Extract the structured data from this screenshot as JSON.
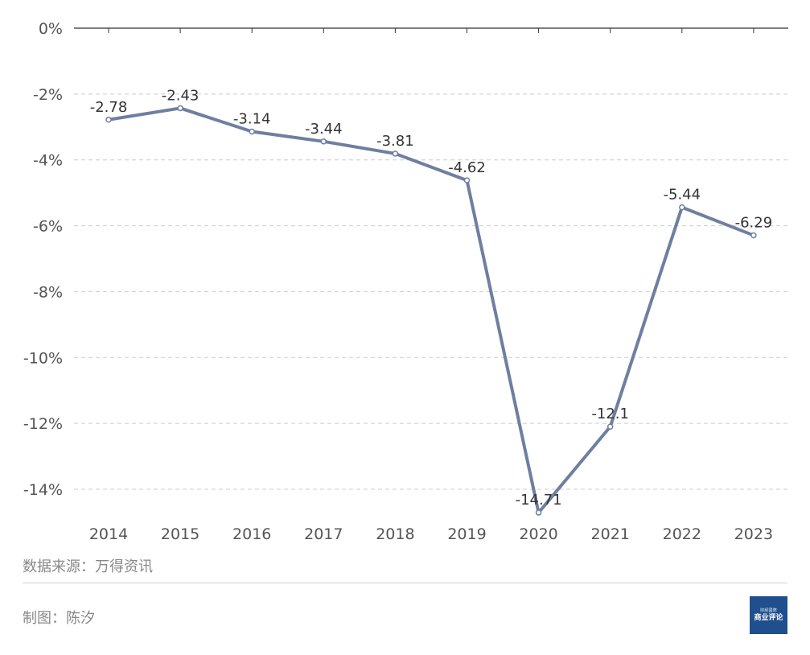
{
  "chart_data": {
    "type": "line",
    "categories": [
      "2014",
      "2015",
      "2016",
      "2017",
      "2018",
      "2019",
      "2020",
      "2021",
      "2022",
      "2023"
    ],
    "values": [
      -2.78,
      -2.43,
      -3.14,
      -3.44,
      -3.81,
      -4.62,
      -14.71,
      -12.1,
      -5.44,
      -6.29
    ],
    "data_labels": [
      "-2.78",
      "-2.43",
      "-3.14",
      "-3.44",
      "-3.81",
      "-4.62",
      "-14.71",
      "-12.1",
      "-5.44",
      "-6.29"
    ],
    "ylim": [
      -15,
      0
    ],
    "yticks": [
      0,
      -2,
      -4,
      -6,
      -8,
      -10,
      -12,
      -14
    ],
    "ytick_labels": [
      "0%",
      "-2%",
      "-4%",
      "-6%",
      "-8%",
      "-10%",
      "-12%",
      "-14%"
    ],
    "grid": "horizontal-dashed",
    "line_color": "#6e7fa0"
  },
  "footer": {
    "source": "数据来源：万得资讯",
    "author": "制图：陈汐",
    "logo_main": "商业评论",
    "logo_top": "財經國際"
  }
}
